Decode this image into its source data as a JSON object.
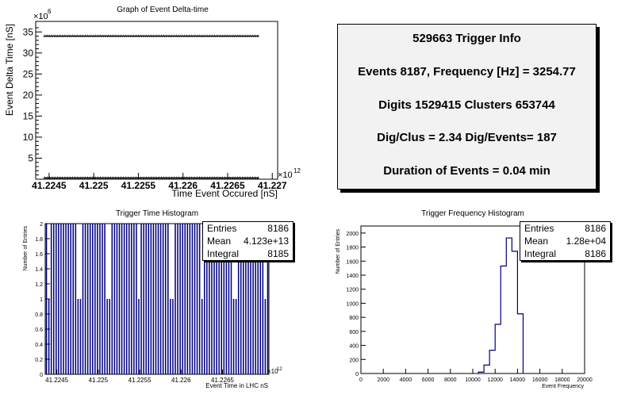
{
  "info_box": {
    "line1": "529663 Trigger Info",
    "line2": "Events 8187, Frequency [Hz] = 3254.77",
    "line3": "Digits 1529415 Clusters 653744",
    "line4": "Dig/Clus = 2.34 Dig/Events= 187",
    "line5": "Duration of Events = 0.04 min"
  },
  "stats_time": {
    "entries_label": "Entries",
    "entries": "8186",
    "mean_label": "Mean",
    "mean": "4.123e+13",
    "integral_label": "Integral",
    "integral": "8185"
  },
  "stats_freq": {
    "entries_label": "Entries",
    "entries": "8186",
    "mean_label": "Mean",
    "mean": "1.28e+04",
    "integral_label": "Integral",
    "integral": "8186"
  },
  "chart_data": [
    {
      "type": "scatter",
      "title": "Graph of Event Delta-time",
      "xlabel": "Time Event Occured [nS]",
      "ylabel": "Event Delta Time [nS]",
      "y_exponent_label": "×10",
      "y_exponent": "6",
      "x_exponent_label": "×10",
      "x_exponent": "12",
      "x_ticks": [
        "41.2245",
        "41.225",
        "41.2255",
        "41.226",
        "41.2265",
        "41.227"
      ],
      "y_ticks": [
        "5",
        "10",
        "15",
        "20",
        "25",
        "30",
        "35"
      ],
      "x_range": [
        41.22435,
        41.22706
      ],
      "ylim": [
        0,
        37.5
      ],
      "series": [
        {
          "values_upper": 34.0,
          "values_lower": 0.3,
          "x_start": 41.22445,
          "x_end": 41.22685,
          "marker": "asterisk"
        }
      ],
      "grid": false
    },
    {
      "type": "bar",
      "title": "Trigger Time Histogram",
      "xlabel": "Event Time in LHC nS",
      "ylabel": "Number of Entries",
      "x_exponent_label": "×10",
      "x_exponent": "12",
      "x_ticks": [
        "41.2245",
        "41.225",
        "41.2255",
        "41.226",
        "41.2265"
      ],
      "y_ticks": [
        "0",
        "0.2",
        "0.4",
        "0.6",
        "0.8",
        "1",
        "1.2",
        "1.4",
        "1.6",
        "1.8",
        "2"
      ],
      "x_range": [
        41.22436,
        41.22706
      ],
      "ylim": [
        0,
        2.0
      ],
      "bins": 92,
      "bin_values_pattern": "mostly 2 with periodic 1",
      "one_bins": [
        1,
        13,
        14,
        25,
        26,
        38,
        51,
        52,
        64,
        77,
        78,
        90
      ],
      "color": "#000080",
      "grid": false
    },
    {
      "type": "bar",
      "title": "Trigger Frequency Histogram",
      "xlabel": "Event Frequency",
      "ylabel": "Number of Entries",
      "x_ticks": [
        "0",
        "2000",
        "4000",
        "6000",
        "8000",
        "10000",
        "12000",
        "14000",
        "16000",
        "18000",
        "20000"
      ],
      "y_ticks": [
        "0",
        "200",
        "400",
        "600",
        "800",
        "1000",
        "1200",
        "1400",
        "1600",
        "1800",
        "2000"
      ],
      "xlim": [
        0,
        20000
      ],
      "ylim": [
        0,
        2100
      ],
      "bin_edges": [
        10500,
        11000,
        11500,
        12000,
        12500,
        13000,
        13500,
        14000,
        14500
      ],
      "values": [
        20,
        120,
        330,
        700,
        1530,
        1930,
        1740,
        850
      ],
      "color": "#000080",
      "grid": false
    }
  ]
}
